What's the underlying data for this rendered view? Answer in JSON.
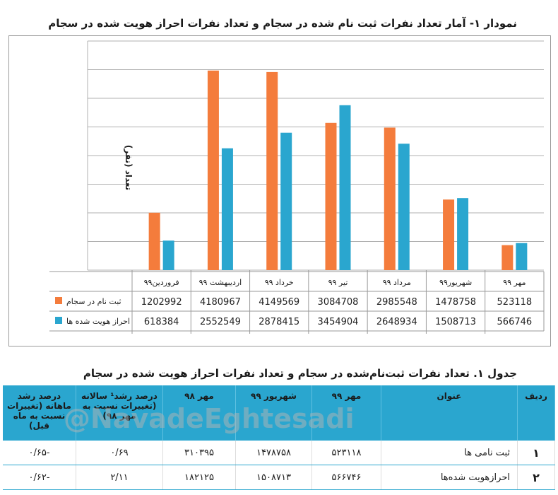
{
  "chart_title": "نمودار ۱- آمار تعداد نفرات ثبت نام شده در سجام و تعداد نفرات احراز هویت شده در سجام",
  "chart_data": {
    "type": "bar",
    "title": "نمودار ۱- آمار تعداد نفرات ثبت نام شده در سجام و تعداد نفرات احراز هویت شده در سجام",
    "ylabel": "تعداد (نفر)",
    "categories": [
      "فروردین۹۹",
      "اردیبهشت ۹۹",
      "خرداد ۹۹",
      "تیر ۹۹",
      "مرداد ۹۹",
      "شهریور۹۹",
      "مهر ۹۹"
    ],
    "series": [
      {
        "name": "ثبت نام در سجام",
        "color": "#f47c3c",
        "values": [
          1202992,
          4180967,
          4149569,
          3084708,
          2985548,
          1478758,
          523118
        ]
      },
      {
        "name": "احراز هویت شده ها",
        "color": "#2aa6cf",
        "values": [
          618384,
          2552549,
          2878415,
          3454904,
          2648934,
          1508713,
          566746
        ]
      }
    ],
    "ylim": [
      0,
      4800000
    ],
    "grid": true,
    "legend": "in data table"
  },
  "table_title": "جدول ۱. تعداد نفرات ثبت‌نام‌شده در سجام و تعداد نفرات احراز هویت شده در سجام",
  "table": {
    "headers": [
      "ردیف",
      "عنوان",
      "مهر ۹۹",
      "شهریور ۹۹",
      "مهر ۹۸",
      "درصد رشد¹ سالانه (تغییرات نسبت به مهر ۹۸)",
      "درصد رشد ماهانه (تغییرات نسبت به ماه قبل)"
    ],
    "rows": [
      [
        "۱",
        "ثبت نامی ها",
        "۵۲۳۱۱۸",
        "۱۴۷۸۷۵۸",
        "۳۱۰۳۹۵",
        "۰/۶۹",
        "-۰/۶۵"
      ],
      [
        "۲",
        "احرازهویت شده‌ها",
        "۵۶۶۷۴۶",
        "۱۵۰۸۷۱۳",
        "۱۸۲۱۲۵",
        "۲/۱۱",
        "-۰/۶۲"
      ]
    ]
  },
  "watermark": "@NavadeEghtesadi"
}
